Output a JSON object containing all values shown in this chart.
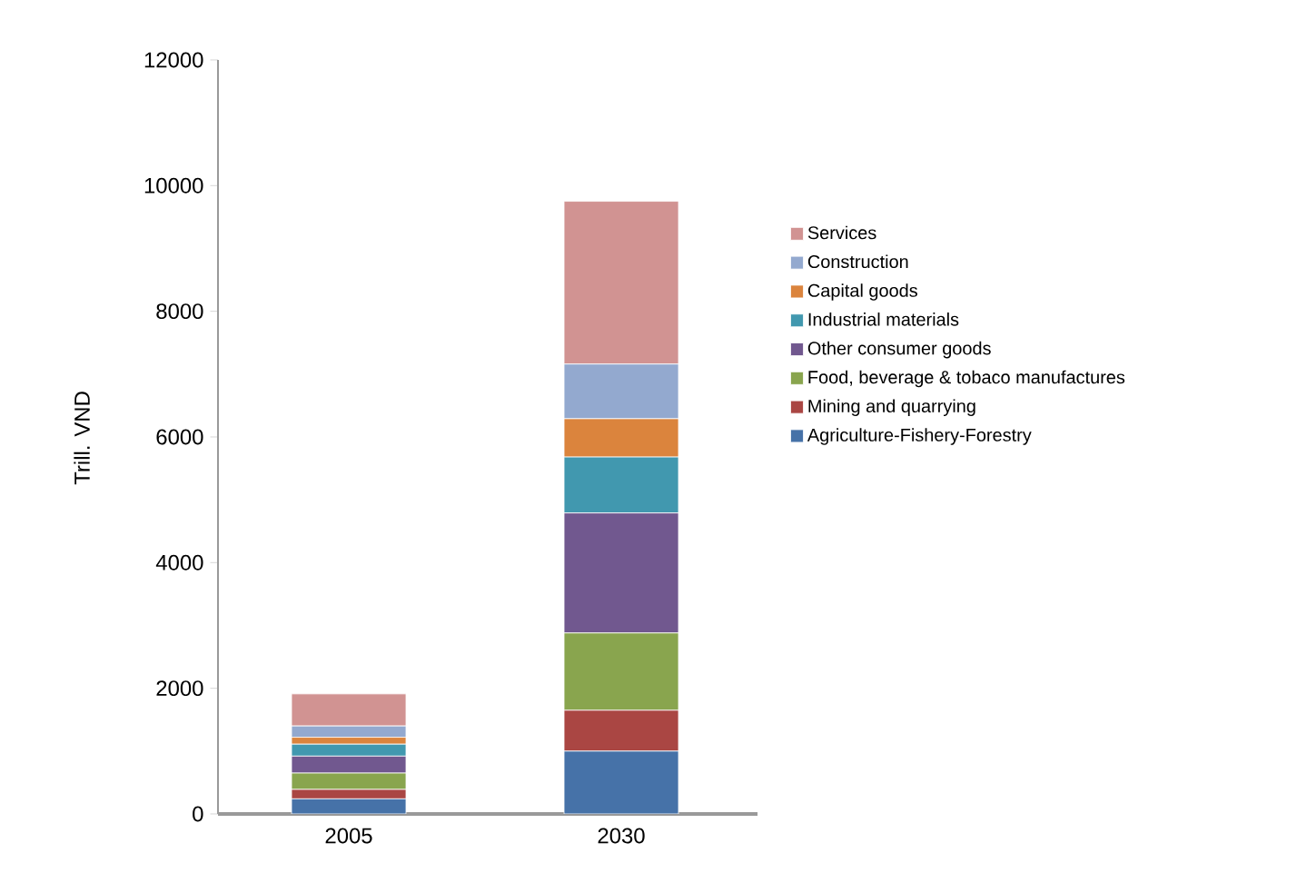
{
  "chart_data": {
    "type": "bar",
    "stacked": true,
    "ylabel": "Trill. VND",
    "categories": [
      "2005",
      "2030"
    ],
    "ylim": [
      0,
      12000
    ],
    "yticks": [
      0,
      2000,
      4000,
      6000,
      8000,
      10000,
      12000
    ],
    "legend": "right",
    "grid": false,
    "series": [
      {
        "name": "Agriculture-Fishery-Forestry",
        "color": "#4672a8",
        "values": [
          240,
          1000
        ]
      },
      {
        "name": "Mining and quarrying",
        "color": "#aa4643",
        "values": [
          150,
          650
        ]
      },
      {
        "name": "Food, beverage & tobaco manufactures",
        "color": "#89a54e",
        "values": [
          260,
          1230
        ]
      },
      {
        "name": "Other consumer goods",
        "color": "#71588f",
        "values": [
          270,
          1910
        ]
      },
      {
        "name": "Industrial materials",
        "color": "#4198af",
        "values": [
          190,
          890
        ]
      },
      {
        "name": "Capital goods",
        "color": "#db843d",
        "values": [
          110,
          610
        ]
      },
      {
        "name": "Construction",
        "color": "#93a9cf",
        "values": [
          180,
          870
        ]
      },
      {
        "name": "Services",
        "color": "#d19392",
        "values": [
          510,
          2590
        ]
      }
    ]
  }
}
